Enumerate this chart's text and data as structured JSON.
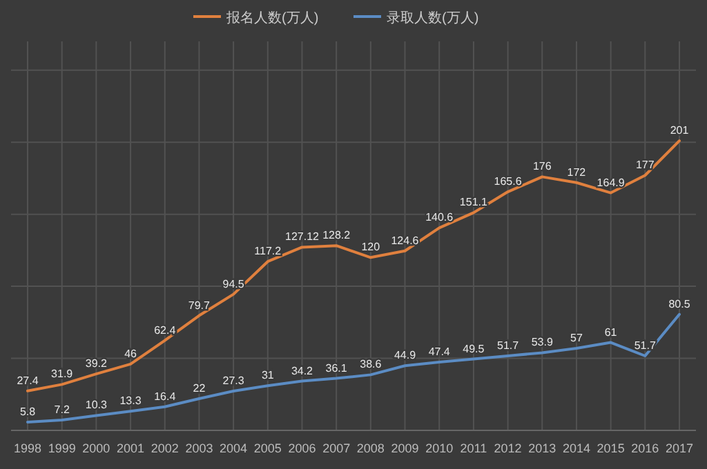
{
  "chart_data": {
    "type": "line",
    "categories": [
      "1998",
      "1999",
      "2000",
      "2001",
      "2002",
      "2003",
      "2004",
      "2005",
      "2006",
      "2007",
      "2008",
      "2009",
      "2010",
      "2011",
      "2012",
      "2013",
      "2014",
      "2015",
      "2016",
      "2017"
    ],
    "series": [
      {
        "name": "报名人数(万人)",
        "color": "#e0803e",
        "values": [
          27.4,
          31.9,
          39.2,
          46,
          62.4,
          79.7,
          94.5,
          117.2,
          127.12,
          128.2,
          120,
          124.6,
          140.6,
          151.1,
          165.6,
          176,
          172,
          164.9,
          177,
          201
        ]
      },
      {
        "name": "录取人数(万人)",
        "color": "#5b8cc4",
        "values": [
          5.8,
          7.2,
          10.3,
          13.3,
          16.4,
          22,
          27.3,
          31,
          34.2,
          36.1,
          38.6,
          44.9,
          47.4,
          49.5,
          51.7,
          53.9,
          57,
          61,
          51.7,
          80.5
        ]
      }
    ],
    "ylim": [
      0,
      270
    ],
    "yticks": [
      {
        "value": 0,
        "label": null
      },
      {
        "value": 50,
        "label": null
      },
      {
        "value": 100,
        "label": null
      },
      {
        "value": 150,
        "label": null
      },
      {
        "value": 200,
        "label": null
      },
      {
        "value": 250,
        "label": null
      }
    ],
    "grid": true,
    "legend": "top",
    "tick_labels": "x",
    "data_labels": true
  }
}
